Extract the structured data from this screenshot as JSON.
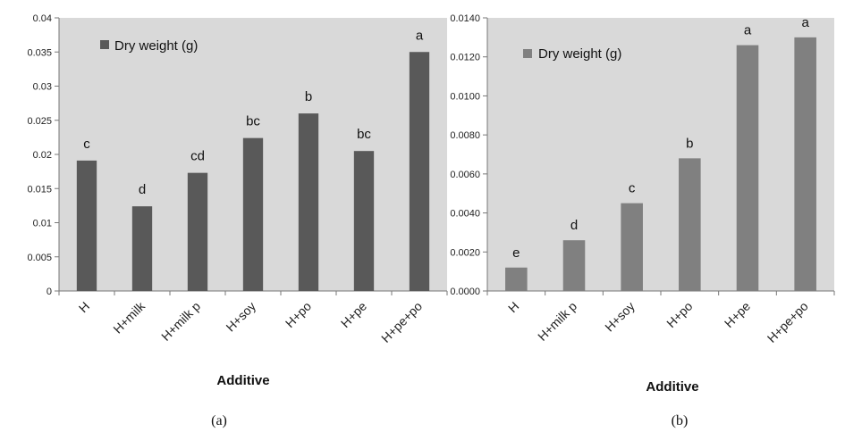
{
  "chart_data": [
    {
      "panel": "(a)",
      "type": "bar",
      "categories": [
        "H",
        "H+milk",
        "H+milk p",
        "H+soy",
        "H+po",
        "H+pe",
        "H+pe+po"
      ],
      "series": [
        {
          "name": "Dry weight (g)",
          "values": [
            0.0191,
            0.0124,
            0.0173,
            0.0224,
            0.026,
            0.0205,
            0.035
          ]
        }
      ],
      "annotations": [
        "c",
        "d",
        "cd",
        "bc",
        "b",
        "bc",
        "a"
      ],
      "yticks": [
        "0",
        "0.005",
        "0.01",
        "0.015",
        "0.02",
        "0.025",
        "0.03",
        "0.035",
        "0.04"
      ],
      "ylim": [
        0,
        0.04
      ],
      "xlabel": "Additive",
      "ylabel": "",
      "legend_position": "top-left",
      "grid": false,
      "bar_color": "#595959",
      "plot_bg": "#d9d9d9"
    },
    {
      "panel": "(b)",
      "type": "bar",
      "categories": [
        "H",
        "H+milk p",
        "H+soy",
        "H+po",
        "H+pe",
        "H+pe+po"
      ],
      "series": [
        {
          "name": "Dry weight (g)",
          "values": [
            0.0012,
            0.0026,
            0.0045,
            0.0068,
            0.0126,
            0.013
          ]
        }
      ],
      "annotations": [
        "e",
        "d",
        "c",
        "b",
        "a",
        "a"
      ],
      "yticks": [
        "0.0000",
        "0.0020",
        "0.0040",
        "0.0060",
        "0.0080",
        "0.0100",
        "0.0120",
        "0.0140"
      ],
      "ylim": [
        0,
        0.014
      ],
      "xlabel": "Additive",
      "ylabel": "",
      "legend_position": "top-left",
      "grid": false,
      "bar_color": "#808080",
      "plot_bg": "#d9d9d9"
    }
  ]
}
